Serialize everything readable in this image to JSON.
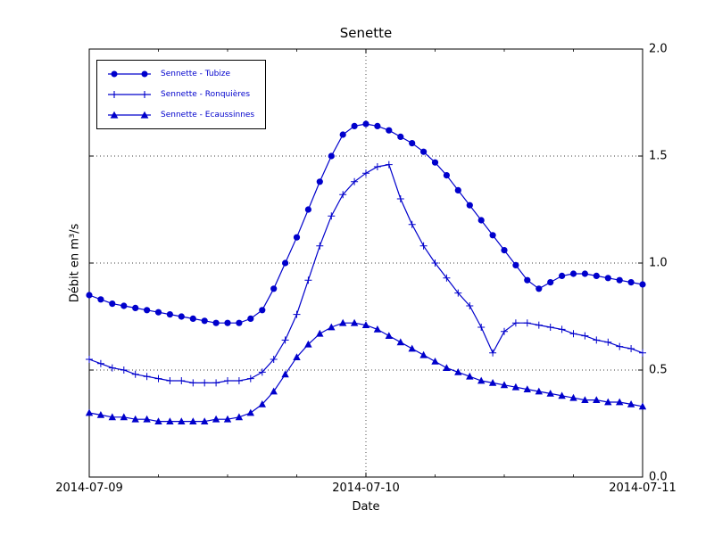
{
  "chart_data": {
    "type": "line",
    "title": "Senette",
    "xlabel": "Date",
    "ylabel": "Débit en m³/s",
    "color": "#0000cc",
    "background": "#ffffff",
    "grid": "dotted",
    "legend_position": "upper left",
    "xlim": [
      0,
      48
    ],
    "ylim": [
      0,
      2
    ],
    "x_unit": "hours after 2014-07-09 00:00",
    "x_start_hour": 0,
    "x_step_hours": 1,
    "xtick_hours": [
      0,
      24,
      48
    ],
    "xtick_labels": [
      "2014-07-09",
      "2014-07-10",
      "2014-07-11"
    ],
    "ytick_values": [
      0,
      0.5,
      1.0,
      1.5,
      2.0
    ],
    "ytick_labels": [
      "0.0",
      "0.5",
      "1.0",
      "1.5",
      "2.0"
    ],
    "grid_y": [
      0.5,
      1.0,
      1.5
    ],
    "grid_x": [
      24
    ],
    "series": [
      {
        "name": "Sennette - Tubize",
        "marker": "circle",
        "values": [
          0.85,
          0.83,
          0.81,
          0.8,
          0.79,
          0.78,
          0.77,
          0.76,
          0.75,
          0.74,
          0.73,
          0.72,
          0.72,
          0.72,
          0.74,
          0.78,
          0.88,
          1.0,
          1.12,
          1.25,
          1.38,
          1.5,
          1.6,
          1.64,
          1.65,
          1.64,
          1.62,
          1.59,
          1.56,
          1.52,
          1.47,
          1.41,
          1.34,
          1.27,
          1.2,
          1.13,
          1.06,
          0.99,
          0.92,
          0.88,
          0.91,
          0.94,
          0.95,
          0.95,
          0.94,
          0.93,
          0.92,
          0.91,
          0.9
        ]
      },
      {
        "name": "Sennette - Ronquières",
        "marker": "plus",
        "values": [
          0.55,
          0.53,
          0.51,
          0.5,
          0.48,
          0.47,
          0.46,
          0.45,
          0.45,
          0.44,
          0.44,
          0.44,
          0.45,
          0.45,
          0.46,
          0.49,
          0.55,
          0.64,
          0.76,
          0.92,
          1.08,
          1.22,
          1.32,
          1.38,
          1.42,
          1.45,
          1.46,
          1.3,
          1.18,
          1.08,
          1.0,
          0.93,
          0.86,
          0.8,
          0.7,
          0.58,
          0.68,
          0.72,
          0.72,
          0.71,
          0.7,
          0.69,
          0.67,
          0.66,
          0.64,
          0.63,
          0.61,
          0.6,
          0.58
        ]
      },
      {
        "name": "Sennette - Ecaussinnes",
        "marker": "triangle",
        "values": [
          0.3,
          0.29,
          0.28,
          0.28,
          0.27,
          0.27,
          0.26,
          0.26,
          0.26,
          0.26,
          0.26,
          0.27,
          0.27,
          0.28,
          0.3,
          0.34,
          0.4,
          0.48,
          0.56,
          0.62,
          0.67,
          0.7,
          0.72,
          0.72,
          0.71,
          0.69,
          0.66,
          0.63,
          0.6,
          0.57,
          0.54,
          0.51,
          0.49,
          0.47,
          0.45,
          0.44,
          0.43,
          0.42,
          0.41,
          0.4,
          0.39,
          0.38,
          0.37,
          0.36,
          0.36,
          0.35,
          0.35,
          0.34,
          0.33
        ]
      }
    ]
  }
}
